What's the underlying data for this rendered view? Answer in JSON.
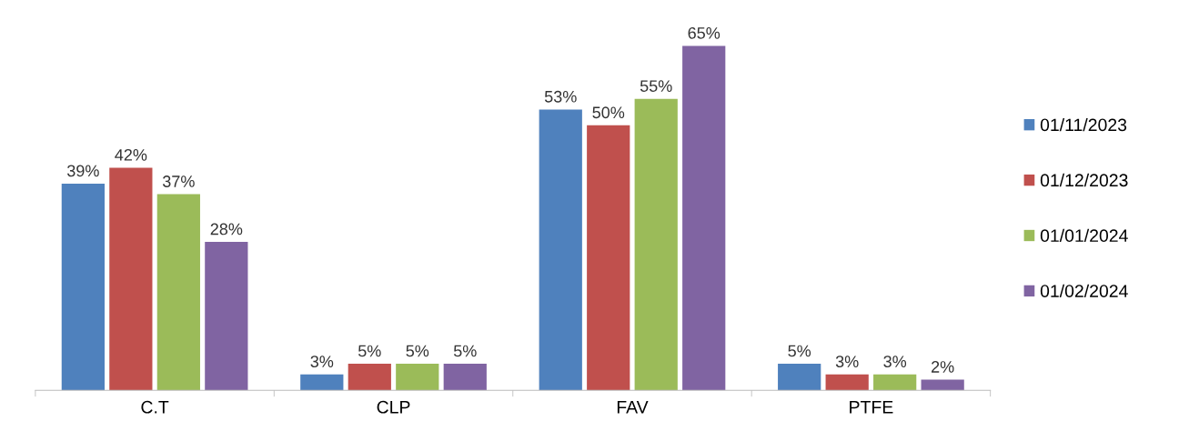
{
  "chart_data": {
    "type": "bar",
    "categories": [
      "C.T",
      "CLP",
      "FAV",
      "PTFE"
    ],
    "series": [
      {
        "name": "01/11/2023",
        "color": "#4f81bd",
        "values": [
          39,
          3,
          53,
          5
        ],
        "value_labels": [
          "39%",
          "3%",
          "53%",
          "5%"
        ]
      },
      {
        "name": "01/12/2023",
        "color": "#c0504d",
        "values": [
          42,
          5,
          50,
          3
        ],
        "value_labels": [
          "42%",
          "5%",
          "50%",
          "3%"
        ]
      },
      {
        "name": "01/01/2024",
        "color": "#9bbb59",
        "values": [
          37,
          5,
          55,
          3
        ],
        "value_labels": [
          "37%",
          "5%",
          "55%",
          "3%"
        ]
      },
      {
        "name": "01/02/2024",
        "color": "#8064a2",
        "values": [
          28,
          5,
          65,
          2
        ],
        "value_labels": [
          "28%",
          "5%",
          "65%",
          "2%"
        ]
      }
    ],
    "legend": "right",
    "grid": false
  }
}
